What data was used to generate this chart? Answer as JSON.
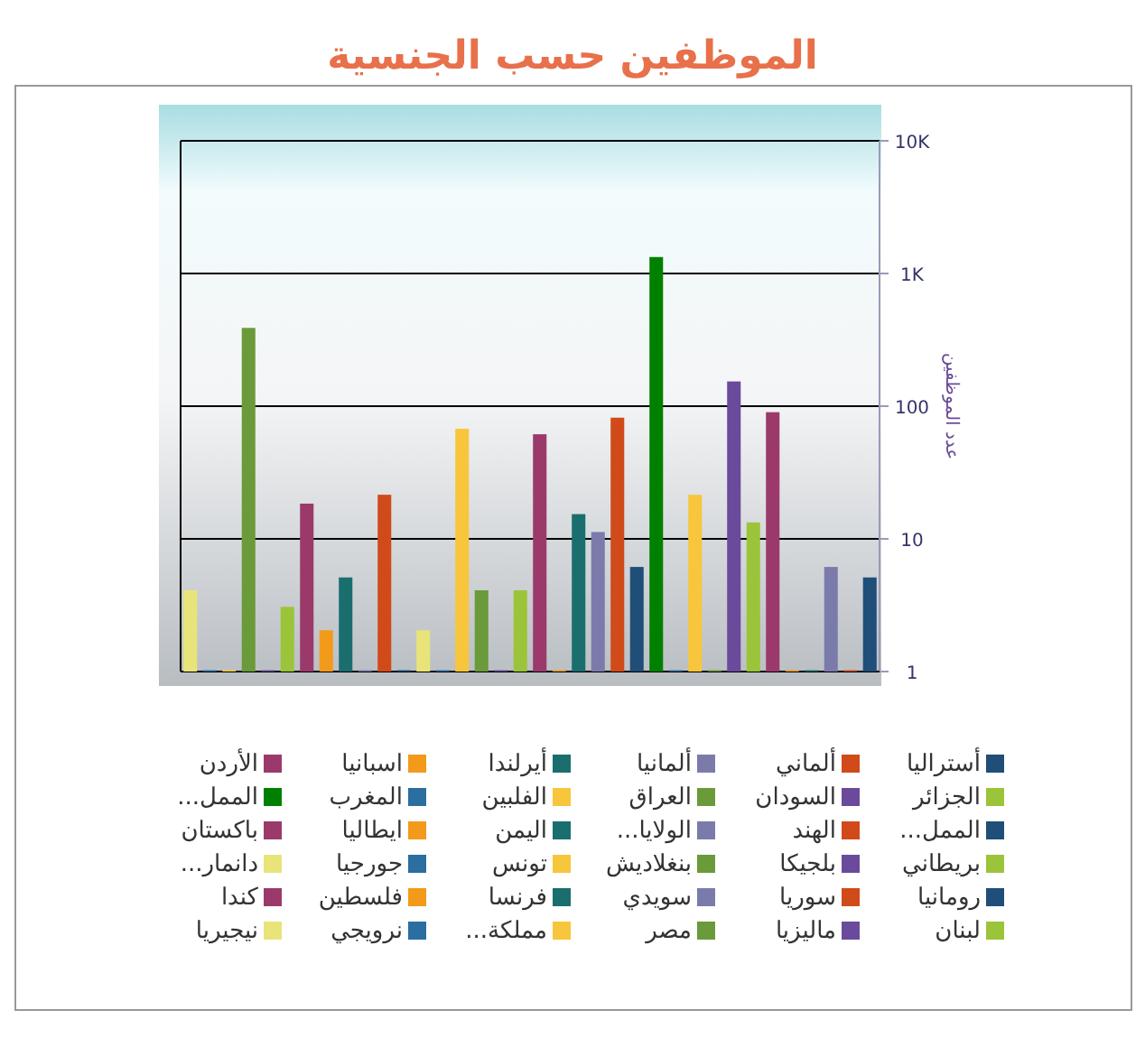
{
  "chart_data": {
    "type": "bar",
    "title": "الموظفين حسب الجنسية",
    "ylabel": "عدد الموظفين",
    "categories": [
      null
    ],
    "series": [
      {
        "name": "نيجيريا",
        "color": "#e8e47a",
        "values": [
          4
        ]
      },
      {
        "name": "نرويجي",
        "color": "#2a6fa0",
        "values": [
          1
        ]
      },
      {
        "name": "مملكة...",
        "color": "#f7c63c",
        "values": [
          1
        ]
      },
      {
        "name": "مصر",
        "color": "#6a9a3a",
        "values": [
          380
        ]
      },
      {
        "name": "ماليزيا",
        "color": "#6a4a9a",
        "values": [
          1
        ]
      },
      {
        "name": "لبنان",
        "color": "#9bc43a",
        "values": [
          3
        ]
      },
      {
        "name": "كندا",
        "color": "#9b3a6a",
        "values": [
          18
        ]
      },
      {
        "name": "فلسطين",
        "color": "#f39a1a",
        "values": [
          2
        ]
      },
      {
        "name": "فرنسا",
        "color": "#1a6e6e",
        "values": [
          5
        ]
      },
      {
        "name": "سويدي",
        "color": "#7b7bab",
        "values": [
          1
        ]
      },
      {
        "name": "سوريا",
        "color": "#d04a1a",
        "values": [
          21
        ]
      },
      {
        "name": "رومانيا",
        "color": "#1f4e79",
        "values": [
          1
        ]
      },
      {
        "name": "دانمار...",
        "color": "#e8e47a",
        "values": [
          2
        ]
      },
      {
        "name": "جورجيا",
        "color": "#2a6fa0",
        "values": [
          1
        ]
      },
      {
        "name": "تونس",
        "color": "#f7c63c",
        "values": [
          66
        ]
      },
      {
        "name": "بنغلاديش",
        "color": "#6a9a3a",
        "values": [
          4
        ]
      },
      {
        "name": "بلجيكا",
        "color": "#6a4a9a",
        "values": [
          1
        ]
      },
      {
        "name": "بريطاني",
        "color": "#9bc43a",
        "values": [
          4
        ]
      },
      {
        "name": "باكستان",
        "color": "#9b3a6a",
        "values": [
          60
        ]
      },
      {
        "name": "ايطاليا",
        "color": "#f39a1a",
        "values": [
          1
        ]
      },
      {
        "name": "اليمن",
        "color": "#1a6e6e",
        "values": [
          15
        ]
      },
      {
        "name": "الولايا...",
        "color": "#7b7bab",
        "values": [
          11
        ]
      },
      {
        "name": "الهند",
        "color": "#d04a1a",
        "values": [
          80
        ]
      },
      {
        "name": "الممل...",
        "color": "#1f4e79",
        "values": [
          6
        ]
      },
      {
        "name": "الممل...",
        "color": "#008000",
        "values": [
          1300
        ]
      },
      {
        "name": "المغرب",
        "color": "#2a6fa0",
        "values": [
          1
        ]
      },
      {
        "name": "الفلبين",
        "color": "#f7c63c",
        "values": [
          21
        ]
      },
      {
        "name": "العراق",
        "color": "#6a9a3a",
        "values": [
          1
        ]
      },
      {
        "name": "السودان",
        "color": "#6a4a9a",
        "values": [
          150
        ]
      },
      {
        "name": "الجزائر",
        "color": "#9bc43a",
        "values": [
          13
        ]
      },
      {
        "name": "الأردن",
        "color": "#9b3a6a",
        "values": [
          88
        ]
      },
      {
        "name": "اسبانيا",
        "color": "#f39a1a",
        "values": [
          1
        ]
      },
      {
        "name": "أيرلندا",
        "color": "#1a6e6e",
        "values": [
          1
        ]
      },
      {
        "name": "ألمانيا",
        "color": "#7b7bab",
        "values": [
          6
        ]
      },
      {
        "name": "ألماني",
        "color": "#d04a1a",
        "values": [
          1
        ]
      },
      {
        "name": "أستراليا",
        "color": "#1f4e79",
        "values": [
          5
        ]
      }
    ],
    "log": "y",
    "ylim": [
      1,
      10000
    ],
    "yticks": [
      1,
      10,
      100,
      {
        "value": 1000,
        "label": "1K"
      },
      {
        "value": 10000,
        "label": "10K"
      }
    ],
    "grid": "y",
    "legend": "bottom"
  }
}
